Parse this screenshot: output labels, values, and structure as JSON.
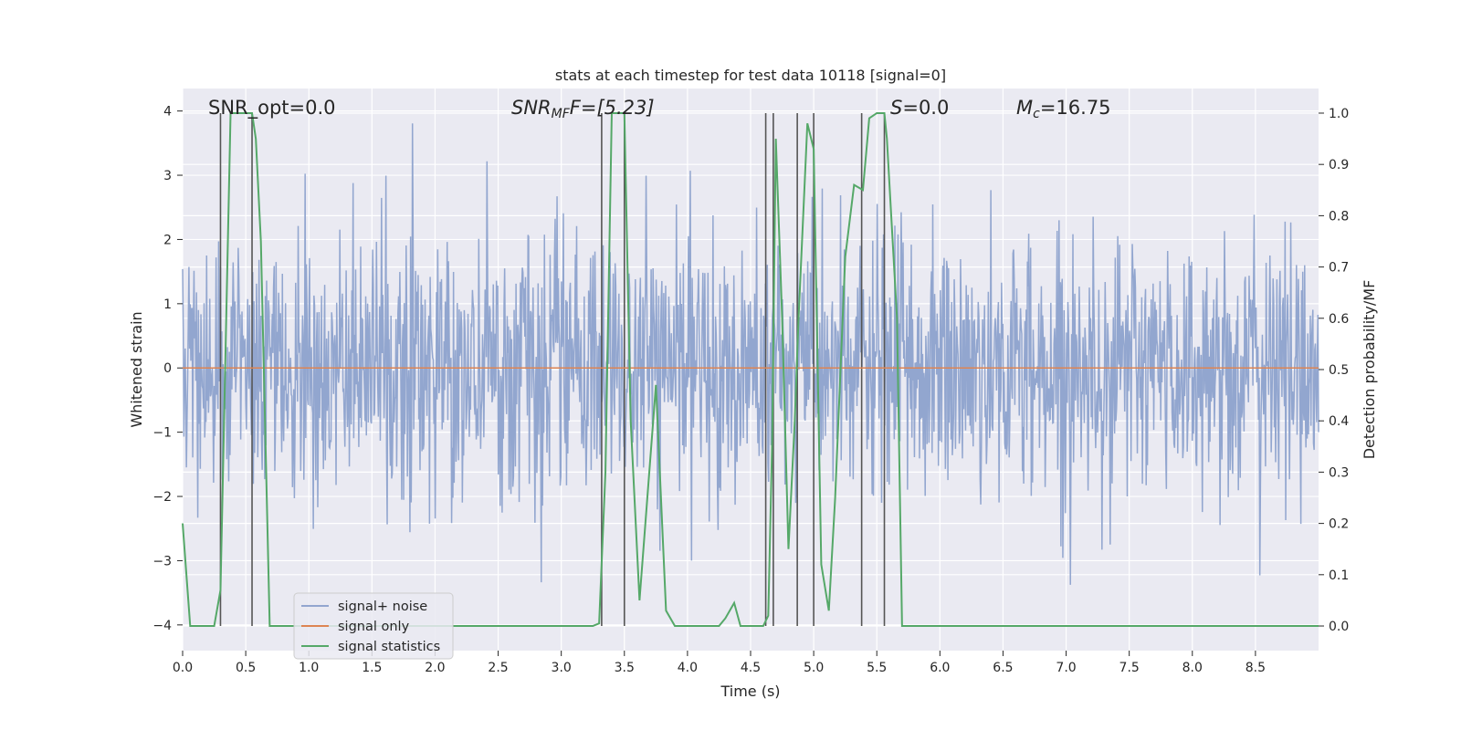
{
  "chart_data": {
    "type": "line",
    "title": "stats at each timestep for test data 10118 [signal=0]",
    "xlabel": "Time (s)",
    "ylabel_left": "Whitened strain",
    "ylabel_right": "Detection probability/MF",
    "xlim": [
      0.0,
      9.0
    ],
    "ylim_left": [
      -4.4,
      4.35
    ],
    "ylim_right": [
      -0.048,
      1.048
    ],
    "x_ticks": [
      "0.0",
      "0.5",
      "1.0",
      "1.5",
      "2.0",
      "2.5",
      "3.0",
      "3.5",
      "4.0",
      "4.5",
      "5.0",
      "5.5",
      "6.0",
      "6.5",
      "7.0",
      "7.5",
      "8.0",
      "8.5"
    ],
    "y_ticks_left": [
      "−4",
      "−3",
      "−2",
      "−1",
      "0",
      "1",
      "2",
      "3",
      "4"
    ],
    "y_ticks_right": [
      "0.0",
      "0.1",
      "0.2",
      "0.3",
      "0.4",
      "0.5",
      "0.6",
      "0.7",
      "0.8",
      "0.9",
      "1.0"
    ],
    "grid": true,
    "annotations": {
      "snr_opt": "SNR_opt=0.0",
      "snr_mf_main": "SNR",
      "snr_mf_sub": "MF",
      "snr_mf_value": "F=[5.23]",
      "s_main": "S",
      "s_value": "=0.0",
      "mc_main": "M",
      "mc_sub": "c",
      "mc_value": "=16.75"
    },
    "legend": {
      "placement": "lower-left",
      "entries": [
        "signal+ noise",
        "signal only",
        "signal statistics"
      ]
    },
    "colors": {
      "noise": "#92a6cf",
      "signal": "#dd8452",
      "statistics": "#55a868",
      "vlines": "#555555",
      "background": "#eaeaf2"
    },
    "series": [
      {
        "name": "signal+ noise",
        "description_values": "whitened strain noise, roughly Gaussian, amplitude up to about ±4",
        "noise_sigma": 1.0,
        "noise_samples": 1800
      },
      {
        "name": "signal only",
        "x": [
          0.0,
          9.0
        ],
        "y": [
          0.0,
          0.0
        ]
      },
      {
        "name": "signal statistics",
        "x": [
          0.0,
          0.06,
          0.25,
          0.3,
          0.38,
          0.5,
          0.55,
          0.58,
          0.62,
          0.69,
          0.9,
          3.25,
          3.3,
          3.35,
          3.4,
          3.5,
          3.55,
          3.62,
          3.75,
          3.83,
          3.9,
          4.25,
          4.3,
          4.37,
          4.42,
          4.6,
          4.64,
          4.67,
          4.7,
          4.75,
          4.8,
          4.85,
          4.88,
          4.95,
          5.0,
          5.06,
          5.12,
          5.17,
          5.25,
          5.32,
          5.39,
          5.44,
          5.5,
          5.56,
          5.58,
          5.66,
          5.7,
          6.0,
          9.0
        ],
        "y": [
          0.2,
          0.0,
          0.0,
          0.07,
          1.0,
          1.0,
          1.0,
          0.95,
          0.75,
          0.0,
          0.0,
          0.0,
          0.005,
          0.3,
          1.0,
          1.0,
          0.4,
          0.05,
          0.47,
          0.03,
          0.0,
          0.0,
          0.015,
          0.045,
          0.0,
          0.0,
          0.02,
          0.35,
          0.95,
          0.6,
          0.15,
          0.4,
          0.6,
          0.98,
          0.93,
          0.12,
          0.03,
          0.25,
          0.72,
          0.86,
          0.85,
          0.99,
          1.0,
          1.0,
          0.95,
          0.6,
          0.0,
          0.0,
          0.0
        ]
      }
    ],
    "vlines_x": [
      0.3,
      0.55,
      3.32,
      3.5,
      4.62,
      4.68,
      4.87,
      5.0,
      5.38,
      5.56
    ]
  }
}
